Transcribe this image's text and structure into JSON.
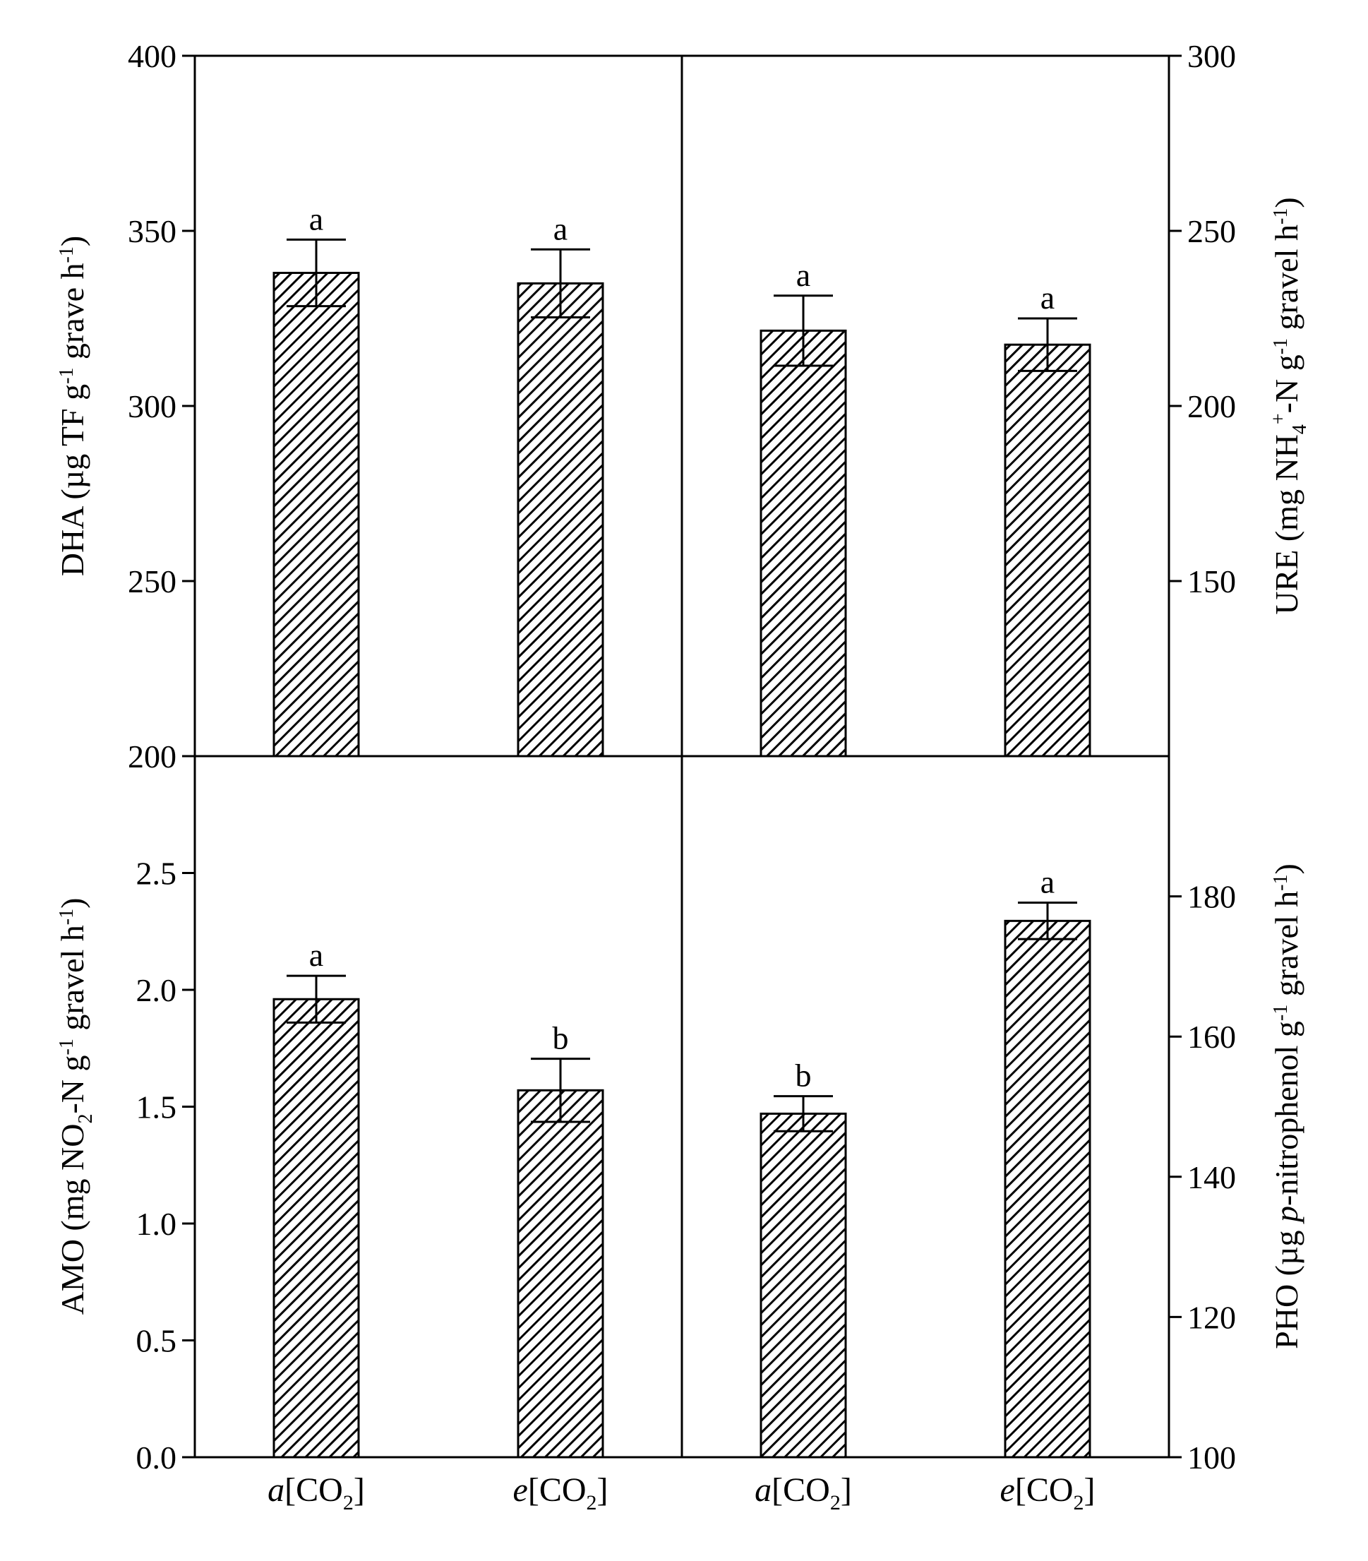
{
  "chart_data": [
    {
      "type": "bar",
      "panel": "top-left",
      "ylabel": "DHA (µg TF g⁻¹ grave h⁻¹)",
      "ylim": [
        200,
        400
      ],
      "yticks": [
        200,
        250,
        300,
        350,
        400
      ],
      "ytick_labels": [
        "200",
        "250",
        "300",
        "350",
        "400"
      ],
      "categories": [
        "a[CO2]",
        "e[CO2]"
      ],
      "values": [
        338,
        335
      ],
      "errors": [
        9.5,
        9.7
      ],
      "letters": [
        "a",
        "a"
      ]
    },
    {
      "type": "bar",
      "panel": "top-right",
      "ylabel": "URE (mg NH₄⁺-N g⁻¹ gravel h⁻¹)",
      "ylim": [
        100,
        300
      ],
      "yticks": [
        150,
        200,
        250,
        300
      ],
      "ytick_labels": [
        "150",
        "200",
        "250",
        "300"
      ],
      "categories": [
        "a[CO2]",
        "e[CO2]"
      ],
      "values": [
        221.5,
        217.5
      ],
      "errors": [
        10,
        7.5
      ],
      "letters": [
        "a",
        "a"
      ]
    },
    {
      "type": "bar",
      "panel": "bottom-left",
      "ylabel": "AMO (mg NO₂-N g⁻¹ gravel h⁻¹)",
      "ylim": [
        0,
        3.0
      ],
      "yticks": [
        0,
        0.5,
        1.0,
        1.5,
        2.0,
        2.5
      ],
      "ytick_labels": [
        "0.0",
        "0.5",
        "1.0",
        "1.5",
        "2.0",
        "2.5"
      ],
      "categories": [
        "a[CO2]",
        "e[CO2]"
      ],
      "values": [
        1.96,
        1.57
      ],
      "errors": [
        0.1,
        0.135
      ],
      "letters": [
        "a",
        "b"
      ]
    },
    {
      "type": "bar",
      "panel": "bottom-right",
      "ylabel": "PHO (µg p-nitrophenol g⁻¹ gravel h⁻¹)",
      "ylim": [
        100,
        200
      ],
      "yticks": [
        100,
        120,
        140,
        160,
        180
      ],
      "ytick_labels": [
        "100",
        "120",
        "140",
        "160",
        "180"
      ],
      "categories": [
        "a[CO2]",
        "e[CO2]"
      ],
      "values": [
        149,
        176.5
      ],
      "errors": [
        2.5,
        2.6
      ],
      "letters": [
        "b",
        "a"
      ]
    }
  ],
  "labels": {
    "top_left_y": {
      "pre": "DHA (µg TF g",
      "sup1": "-1",
      "mid": " grave h",
      "sup2": "-1",
      "post": ")"
    },
    "top_right_y": {
      "pre": "URE (mg NH",
      "sub": "4",
      "sup": "+",
      "mid": "-N g",
      "sup1": "-1",
      "mid2": " gravel h",
      "sup2": "-1",
      "post": ")"
    },
    "bottom_left_y": {
      "pre": "AMO (mg NO",
      "sub": "2",
      "mid": "-N g",
      "sup1": "-1",
      "mid2": " gravel h",
      "sup2": "-1",
      "post": ")"
    },
    "bottom_right_y": {
      "pre": "PHO (µg ",
      "ital": "p",
      "mid": "-nitrophenol g",
      "sup1": "-1",
      "mid2": " gravel h",
      "sup2": "-1",
      "post": ")"
    },
    "xcat": {
      "a_prefix": "a",
      "e_prefix": "e",
      "bracket_open": "[CO",
      "sub": "2",
      "bracket_close": "]"
    }
  }
}
